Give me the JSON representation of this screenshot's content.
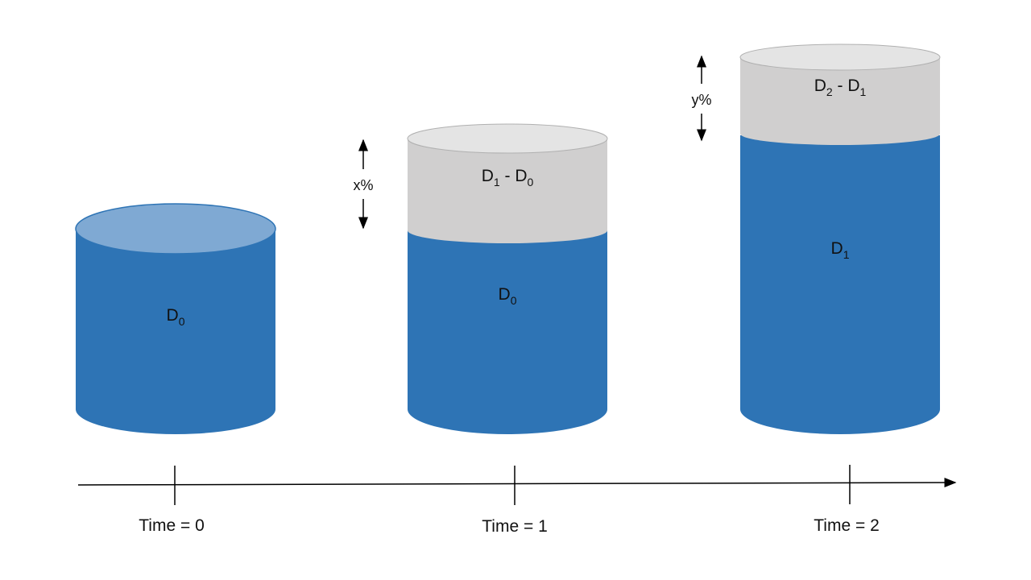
{
  "colors": {
    "stored_body": "#2e74b5",
    "stored_top": "#7fa9d3",
    "growth_body": "#d0cfcf",
    "growth_top": "#e4e4e4",
    "axis": "#000000",
    "cylinder_edge": "#b0b0b0"
  },
  "cylinders": [
    {
      "base": {
        "main": "D",
        "sub": "0"
      },
      "growth": null,
      "change": null
    },
    {
      "base": {
        "main": "D",
        "sub": "0"
      },
      "growth": {
        "a_main": "D",
        "a_sub": "1",
        "op": " - ",
        "b_main": "D",
        "b_sub": "0"
      },
      "change": "x%"
    },
    {
      "base": {
        "main": "D",
        "sub": "1"
      },
      "growth": {
        "a_main": "D",
        "a_sub": "2",
        "op": " - ",
        "b_main": "D",
        "b_sub": "1"
      },
      "change": "y%"
    }
  ],
  "timeline": {
    "ticks": [
      "Time = 0",
      "Time = 1",
      "Time = 2"
    ]
  }
}
